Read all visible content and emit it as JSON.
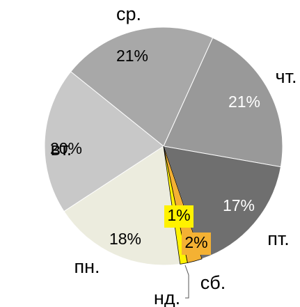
{
  "chart_data": {
    "type": "pie",
    "categories": [
      "пн.",
      "вт.",
      "ср.",
      "чт.",
      "пт.",
      "сб.",
      "нд."
    ],
    "values": [
      18,
      20,
      21,
      21,
      17,
      2,
      1
    ],
    "value_labels": [
      "18%",
      "20%",
      "21%",
      "21%",
      "17%",
      "2%",
      "1%"
    ],
    "colors": [
      "#ececde",
      "#c8c8c8",
      "#a8a8a8",
      "#999999",
      "#6f6f6f",
      "#f4b133",
      "#fff200"
    ]
  }
}
